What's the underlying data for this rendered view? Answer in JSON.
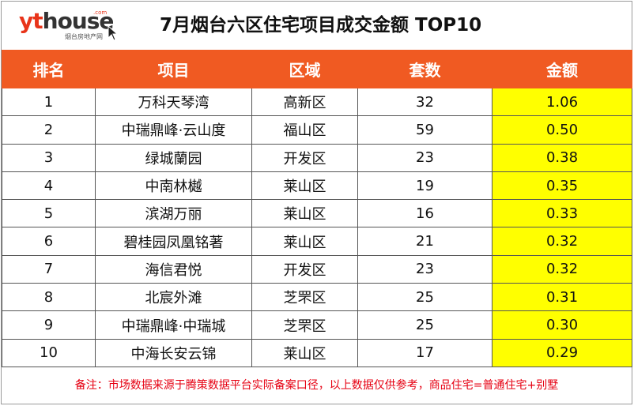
{
  "logo": {
    "word_a": "yt",
    "word_b": "house",
    "com": ".com",
    "tagline": "烟台房地产网"
  },
  "title": "7月烟台六区住宅项目成交金额 TOP10",
  "columns": [
    "排名",
    "项目",
    "区域",
    "套数",
    "金额"
  ],
  "rows": [
    {
      "rank": "1",
      "project": "万科天琴湾",
      "district": "高新区",
      "units": "32",
      "amount": "1.06"
    },
    {
      "rank": "2",
      "project": "中瑞鼎峰·云山度",
      "district": "福山区",
      "units": "59",
      "amount": "0.50"
    },
    {
      "rank": "3",
      "project": "绿城蘭园",
      "district": "开发区",
      "units": "23",
      "amount": "0.38"
    },
    {
      "rank": "4",
      "project": "中南林樾",
      "district": "莱山区",
      "units": "19",
      "amount": "0.35"
    },
    {
      "rank": "5",
      "project": "滨湖万丽",
      "district": "莱山区",
      "units": "16",
      "amount": "0.33"
    },
    {
      "rank": "6",
      "project": "碧桂园凤凰铭著",
      "district": "莱山区",
      "units": "21",
      "amount": "0.32"
    },
    {
      "rank": "7",
      "project": "海信君悦",
      "district": "开发区",
      "units": "23",
      "amount": "0.32"
    },
    {
      "rank": "8",
      "project": "北宸外滩",
      "district": "芝罘区",
      "units": "25",
      "amount": "0.31"
    },
    {
      "rank": "9",
      "project": "中瑞鼎峰·中瑞城",
      "district": "芝罘区",
      "units": "25",
      "amount": "0.30"
    },
    {
      "rank": "10",
      "project": "中海长安云锦",
      "district": "莱山区",
      "units": "17",
      "amount": "0.29"
    }
  ],
  "note": "备注：市场数据来源于腾策数据平台实际备案口径，以上数据仅供参考，商品住宅=普通住宅+别墅",
  "colors": {
    "header": "#f05a22",
    "highlight": "#ffff00",
    "note": "#e60012"
  }
}
